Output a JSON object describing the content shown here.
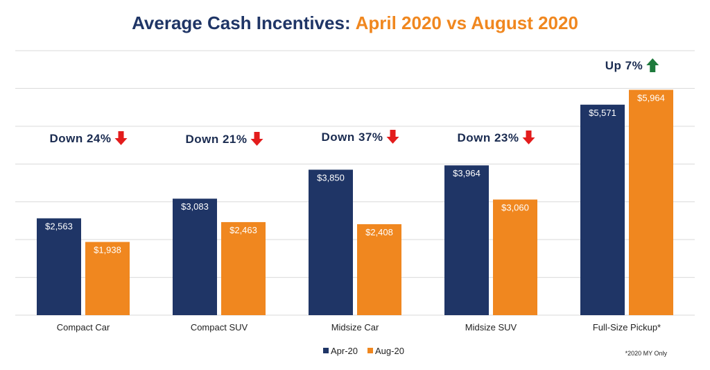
{
  "chart_data": {
    "type": "bar",
    "title_part1": "Average Cash Incentives:",
    "title_part2": "April 2020 vs August 2020",
    "categories": [
      "Compact Car",
      "Compact SUV",
      "Midsize Car",
      "Midsize SUV",
      "Full-Size Pickup*"
    ],
    "series": [
      {
        "name": "Apr-20",
        "values": [
          2563,
          3083,
          3850,
          3964,
          5571
        ],
        "labels": [
          "$2,563",
          "$3,083",
          "$3,850",
          "$3,964",
          "$5,571"
        ],
        "color": "#1f3566"
      },
      {
        "name": "Aug-20",
        "values": [
          1938,
          2463,
          2408,
          3060,
          5964
        ],
        "labels": [
          "$1,938",
          "$2,463",
          "$2,408",
          "$3,060",
          "$5,964"
        ],
        "color": "#f0871f"
      }
    ],
    "changes": [
      {
        "text": "Down 24%",
        "direction": "down"
      },
      {
        "text": "Down 21%",
        "direction": "down"
      },
      {
        "text": "Down 37%",
        "direction": "down"
      },
      {
        "text": "Down 23%",
        "direction": "down"
      },
      {
        "text": "Up 7%",
        "direction": "up"
      }
    ],
    "ylim": [
      0,
      7000
    ],
    "grid": true,
    "legend_position": "bottom",
    "footnote": "*2020 MY Only",
    "colors": {
      "title_main": "#1f3566",
      "title_accent": "#f0871f",
      "down_arrow": "#e31c1c",
      "up_arrow": "#1e7a3c",
      "grid": "#d9d9d9"
    }
  }
}
